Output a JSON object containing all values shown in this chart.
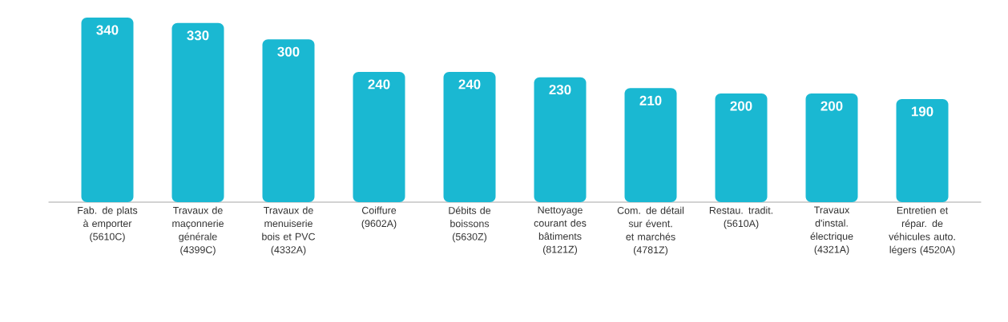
{
  "chart_data": {
    "type": "bar",
    "categories": [
      "Fab. de plats à emporter (5610C)",
      "Travaux de maçonnerie générale (4399C)",
      "Travaux de menuiserie bois et PVC (4332A)",
      "Coiffure (9602A)",
      "Débits de boissons (5630Z)",
      "Nettoyage courant des bâtiments (8121Z)",
      "Com. de détail sur évent. et marchés (4781Z)",
      "Restau. tradit. (5610A)",
      "Travaux d'instal. électrique (4321A)",
      "Entretien et répar. de véhicules auto. légers (4520A)"
    ],
    "values": [
      340,
      330,
      300,
      240,
      240,
      230,
      210,
      200,
      200,
      190
    ],
    "color": "#1ab8d2",
    "data_labels": true
  }
}
